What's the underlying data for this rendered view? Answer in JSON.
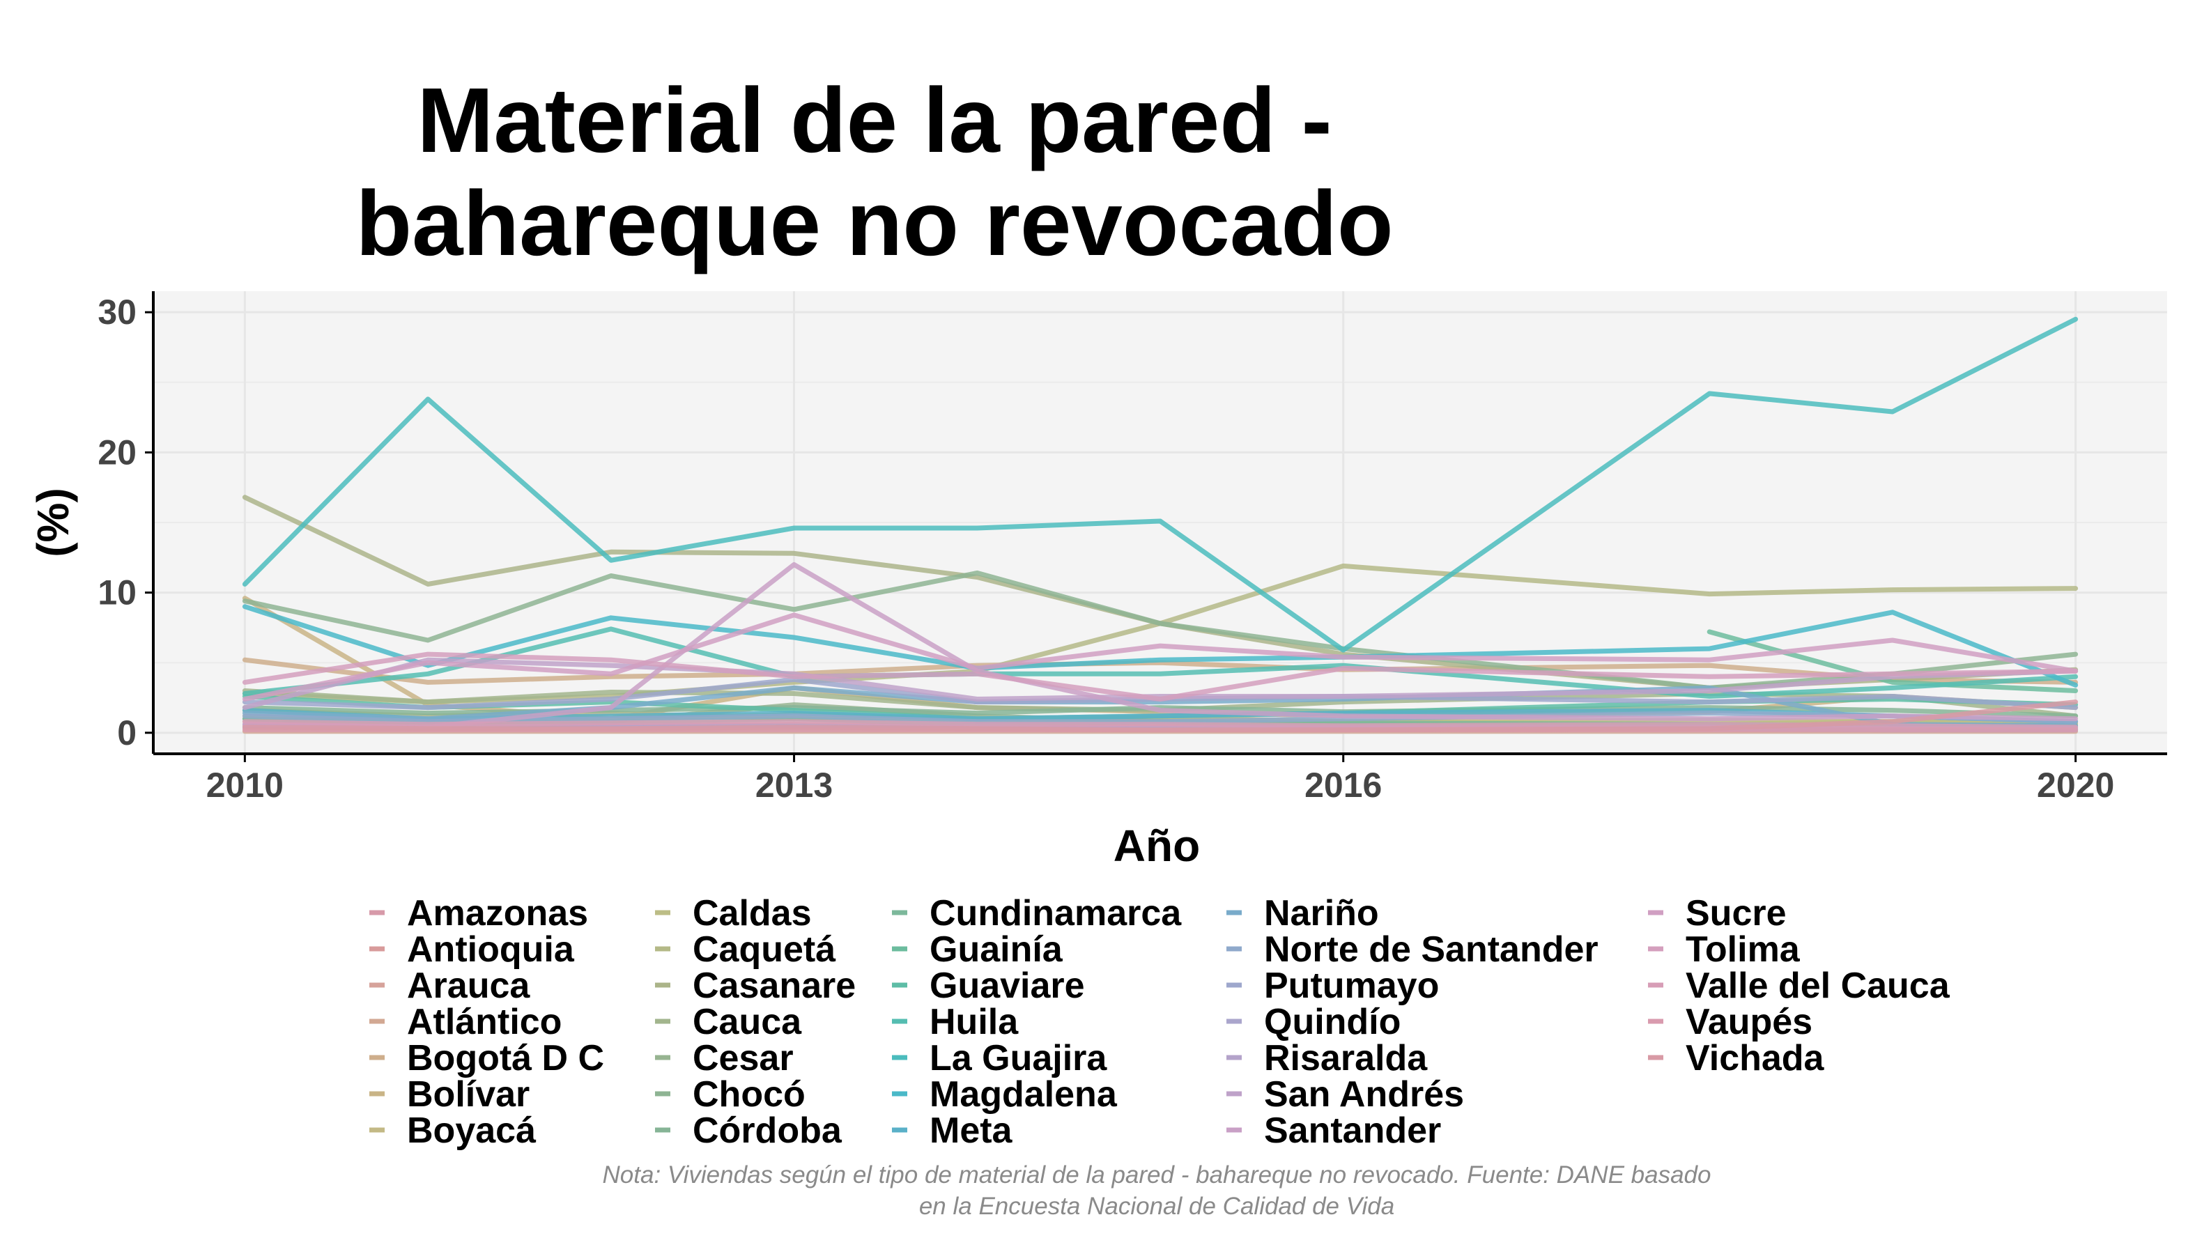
{
  "chart_data": {
    "type": "line",
    "title": [
      "Material de la pared -",
      "bahareque no revocado"
    ],
    "xlabel": "Año",
    "ylabel": "(%)",
    "xlim": [
      2009.5,
      2020.5
    ],
    "ylim": [
      -1.5,
      31.5
    ],
    "x_ticks": [
      2010,
      2013,
      2016,
      2020
    ],
    "y_ticks": [
      0,
      10,
      20,
      30
    ],
    "grid": true,
    "legend_position": "bottom",
    "caption": [
      "Nota: Viviendas según el tipo de material de la pared - bahareque no revocado. Fuente: DANE basado",
      "en la Encuesta Nacional de Calidad de Vida"
    ],
    "series": [
      {
        "name": "Amazonas",
        "color": "#d79aa9",
        "x": [
          2010,
          2011,
          2012,
          2013,
          2014,
          2015,
          2016,
          2018,
          2019,
          2020
        ],
        "y": [
          0.3,
          0.2,
          0.2,
          0.3,
          0.2,
          0.2,
          0.2,
          0.2,
          0.2,
          0.2
        ]
      },
      {
        "name": "Antioquia",
        "color": "#d89b9b",
        "x": [
          2010,
          2011,
          2012,
          2013,
          2014,
          2015,
          2016,
          2018,
          2019,
          2020
        ],
        "y": [
          0.5,
          0.3,
          0.4,
          0.3,
          0.3,
          0.4,
          0.3,
          0.3,
          0.2,
          0.2
        ]
      },
      {
        "name": "Arauca",
        "color": "#d6a29a",
        "x": [
          2010,
          2011,
          2012,
          2013,
          2014,
          2015,
          2016,
          2018,
          2019,
          2020
        ],
        "y": [
          0.8,
          0.4,
          0.5,
          0.6,
          0.4,
          0.5,
          0.4,
          0.5,
          0.3,
          0.3
        ]
      },
      {
        "name": "Atlántico",
        "color": "#d2a893",
        "x": [
          2010,
          2011,
          2012,
          2013,
          2014,
          2015,
          2016,
          2018,
          2019,
          2020
        ],
        "y": [
          0.1,
          0.1,
          0.1,
          0.1,
          0.1,
          0.1,
          0.1,
          0.1,
          0.1,
          0.1
        ]
      },
      {
        "name": "Bogotá D C",
        "color": "#ceae8c",
        "x": [
          2010,
          2011,
          2012,
          2013,
          2014,
          2015,
          2016,
          2018,
          2019,
          2020
        ],
        "y": [
          5.2,
          3.6,
          4.0,
          4.2,
          4.8,
          5.0,
          4.5,
          4.8,
          3.8,
          3.6
        ]
      },
      {
        "name": "Bolívar",
        "color": "#c9b486",
        "x": [
          2010,
          2011,
          2012,
          2013,
          2014,
          2015,
          2016,
          2018,
          2019,
          2020
        ],
        "y": [
          9.6,
          2.0,
          1.0,
          3.2,
          1.8,
          1.5,
          1.2,
          1.5,
          2.6,
          1.8
        ]
      },
      {
        "name": "Boyacá",
        "color": "#c3b985",
        "x": [
          2010,
          2011,
          2012,
          2013,
          2014,
          2015,
          2016,
          2018,
          2019,
          2020
        ],
        "y": [
          1.6,
          1.2,
          1.4,
          1.0,
          0.9,
          1.0,
          0.8,
          0.9,
          0.8,
          0.6
        ]
      },
      {
        "name": "Caldas",
        "color": "#bcbd86",
        "x": [
          2010,
          2011,
          2012,
          2013,
          2014,
          2015,
          2016,
          2018,
          2019,
          2020
        ],
        "y": [
          1.2,
          0.8,
          1.0,
          1.3,
          0.9,
          1.1,
          0.8,
          0.6,
          0.8,
          0.7
        ]
      },
      {
        "name": "Caquetá",
        "color": "#b4b987",
        "x": [
          2010,
          2011,
          2012,
          2013,
          2014,
          2015,
          2016,
          2018,
          2019,
          2020
        ],
        "y": [
          2.8,
          2.2,
          2.6,
          3.6,
          4.4,
          7.8,
          11.9,
          9.9,
          10.2,
          10.3
        ]
      },
      {
        "name": "Casanare",
        "color": "#abb489",
        "x": [
          2010,
          2011,
          2012,
          2013,
          2014,
          2015,
          2016,
          2018,
          2019,
          2020
        ],
        "y": [
          16.8,
          10.6,
          12.9,
          12.8,
          11.1,
          7.8,
          5.6,
          3.2,
          3.8,
          4.5
        ]
      },
      {
        "name": "Cauca",
        "color": "#a2b58d",
        "x": [
          2010,
          2011,
          2012,
          2013,
          2014,
          2015,
          2016,
          2018,
          2019,
          2020
        ],
        "y": [
          3.0,
          2.2,
          2.9,
          2.8,
          1.8,
          1.6,
          2.2,
          2.8,
          2.6,
          1.2
        ]
      },
      {
        "name": "Cesar",
        "color": "#97b491",
        "x": [
          2010,
          2011,
          2012,
          2013,
          2014,
          2015,
          2016,
          2018,
          2019,
          2020
        ],
        "y": [
          1.0,
          0.6,
          0.8,
          2.0,
          1.2,
          0.8,
          0.6,
          0.5,
          0.5,
          0.4
        ]
      },
      {
        "name": "Chocó",
        "color": "#8eb493",
        "x": [
          2010,
          2011,
          2012,
          2013,
          2014,
          2015,
          2016,
          2018,
          2019,
          2020
        ],
        "y": [
          9.4,
          6.6,
          11.2,
          8.8,
          11.4,
          7.8,
          6.0,
          3.2,
          4.2,
          5.6
        ]
      },
      {
        "name": "Córdoba",
        "color": "#86b496",
        "x": [
          2010,
          2011,
          2012,
          2013,
          2014,
          2015,
          2016,
          2018,
          2019,
          2020
        ],
        "y": [
          1.8,
          1.4,
          1.6,
          1.8,
          1.4,
          1.8,
          1.5,
          1.8,
          1.6,
          1.2
        ]
      },
      {
        "name": "Cundinamarca",
        "color": "#7cb89b",
        "x": [
          2010,
          2011,
          2012,
          2013,
          2014,
          2015,
          2016,
          2018,
          2019,
          2020
        ],
        "y": [
          1.0,
          0.8,
          0.8,
          1.0,
          0.6,
          0.8,
          0.7,
          0.6,
          0.5,
          0.5
        ]
      },
      {
        "name": "Guainía",
        "color": "#6cbc9e",
        "x": [
          2018,
          2019,
          2020
        ],
        "y": [
          7.2,
          3.6,
          3.0
        ]
      },
      {
        "name": "Guaviare",
        "color": "#5ebda6",
        "x": [
          2010,
          2011,
          2012,
          2013,
          2014,
          2015,
          2016,
          2018,
          2019,
          2020
        ],
        "y": [
          2.6,
          1.8,
          2.2,
          1.6,
          1.0,
          1.2,
          1.4,
          2.2,
          2.4,
          2.0
        ]
      },
      {
        "name": "Huila",
        "color": "#55bdb1",
        "x": [
          2010,
          2011,
          2012,
          2013,
          2014,
          2015,
          2016,
          2018,
          2019,
          2020
        ],
        "y": [
          2.8,
          4.2,
          7.4,
          4.0,
          4.2,
          4.2,
          4.8,
          2.6,
          3.2,
          4.0
        ]
      },
      {
        "name": "La Guajira",
        "color": "#4bbcbd",
        "x": [
          2010,
          2011,
          2012,
          2013,
          2014,
          2015,
          2016,
          2018,
          2019,
          2020
        ],
        "y": [
          10.6,
          23.8,
          12.3,
          14.6,
          14.6,
          15.1,
          5.9,
          24.2,
          22.9,
          29.5
        ]
      },
      {
        "name": "Magdalena",
        "color": "#4ab9c8",
        "x": [
          2010,
          2011,
          2012,
          2013,
          2014,
          2015,
          2016,
          2018,
          2019,
          2020
        ],
        "y": [
          9.0,
          4.8,
          8.2,
          6.8,
          4.6,
          5.2,
          5.4,
          6.0,
          8.6,
          3.4
        ]
      },
      {
        "name": "Meta",
        "color": "#5ab0c8",
        "x": [
          2010,
          2011,
          2012,
          2013,
          2014,
          2015,
          2016,
          2018,
          2019,
          2020
        ],
        "y": [
          1.6,
          1.0,
          1.2,
          1.4,
          1.0,
          1.2,
          1.4,
          1.6,
          1.2,
          0.8
        ]
      },
      {
        "name": "Nariño",
        "color": "#79abca",
        "x": [
          2010,
          2011,
          2012,
          2013,
          2014,
          2015,
          2016,
          2018,
          2019,
          2020
        ],
        "y": [
          1.4,
          1.0,
          1.8,
          3.2,
          2.2,
          2.2,
          2.4,
          3.2,
          0.6,
          0.5
        ]
      },
      {
        "name": "Norte de Santander",
        "color": "#8fa9cb",
        "x": [
          2010,
          2011,
          2012,
          2013,
          2014,
          2015,
          2016,
          2018,
          2019,
          2020
        ],
        "y": [
          1.2,
          0.8,
          1.0,
          1.2,
          0.8,
          0.8,
          1.0,
          1.4,
          1.2,
          0.8
        ]
      },
      {
        "name": "Putumayo",
        "color": "#9ea7cc",
        "x": [
          2010,
          2011,
          2012,
          2013,
          2014,
          2015,
          2016,
          2018,
          2019,
          2020
        ],
        "y": [
          2.2,
          1.8,
          2.4,
          3.8,
          2.2,
          2.4,
          2.6,
          2.2,
          2.6,
          1.8
        ]
      },
      {
        "name": "Quindío",
        "color": "#aaa5cc",
        "x": [
          2010,
          2011,
          2012,
          2013,
          2014,
          2015,
          2016,
          2018,
          2019,
          2020
        ],
        "y": [
          0.4,
          0.3,
          0.4,
          0.4,
          0.3,
          0.3,
          0.3,
          0.3,
          0.2,
          0.2
        ]
      },
      {
        "name": "Risaralda",
        "color": "#b4a3ca",
        "x": [
          2010,
          2011,
          2012,
          2013,
          2014,
          2015,
          2016,
          2018,
          2019,
          2020
        ],
        "y": [
          0.6,
          0.4,
          0.5,
          0.5,
          0.4,
          0.4,
          0.4,
          0.4,
          0.3,
          0.3
        ]
      },
      {
        "name": "San Andrés",
        "color": "#bfa2c9",
        "x": [
          2010,
          2011,
          2012,
          2013,
          2014,
          2015,
          2016,
          2018,
          2019,
          2020
        ],
        "y": [
          1.8,
          5.2,
          4.8,
          4.2,
          2.4,
          2.6,
          2.6,
          3.0,
          4.0,
          4.4
        ]
      },
      {
        "name": "Santander",
        "color": "#c9a0c6",
        "x": [
          2010,
          2011,
          2012,
          2013,
          2014,
          2015,
          2016,
          2018,
          2019,
          2020
        ],
        "y": [
          0.6,
          0.4,
          1.8,
          12.0,
          4.4,
          1.6,
          1.2,
          1.0,
          1.2,
          1.0
        ]
      },
      {
        "name": "Sucre",
        "color": "#d09fc2",
        "x": [
          2010,
          2011,
          2012,
          2013,
          2014,
          2015,
          2016,
          2018,
          2019,
          2020
        ],
        "y": [
          2.4,
          5.0,
          4.2,
          8.4,
          4.6,
          6.2,
          5.4,
          5.2,
          6.6,
          4.4
        ]
      },
      {
        "name": "Tolima",
        "color": "#d49fbd",
        "x": [
          2010,
          2011,
          2012,
          2013,
          2014,
          2015,
          2016,
          2018,
          2019,
          2020
        ],
        "y": [
          3.6,
          5.6,
          5.2,
          4.0,
          4.2,
          2.4,
          4.6,
          4.0,
          4.2,
          4.4
        ]
      },
      {
        "name": "Valle del Cauca",
        "color": "#d79db6",
        "x": [
          2010,
          2011,
          2012,
          2013,
          2014,
          2015,
          2016,
          2018,
          2019,
          2020
        ],
        "y": [
          0.8,
          0.6,
          0.7,
          0.8,
          0.6,
          0.6,
          0.5,
          0.6,
          0.5,
          0.4
        ]
      },
      {
        "name": "Vaupés",
        "color": "#d99bae",
        "x": [
          2010,
          2011,
          2012,
          2013,
          2014,
          2015,
          2016,
          2018,
          2019,
          2020
        ],
        "y": [
          0.2,
          0.2,
          0.2,
          0.2,
          0.2,
          0.2,
          0.2,
          0.2,
          0.2,
          0.2
        ]
      },
      {
        "name": "Vichada",
        "color": "#d89aa5",
        "x": [
          2010,
          2011,
          2012,
          2013,
          2014,
          2015,
          2016,
          2018,
          2019,
          2020
        ],
        "y": [
          0.4,
          0.3,
          0.3,
          0.4,
          0.3,
          0.2,
          0.2,
          0.3,
          0.8,
          2.2
        ]
      }
    ]
  }
}
